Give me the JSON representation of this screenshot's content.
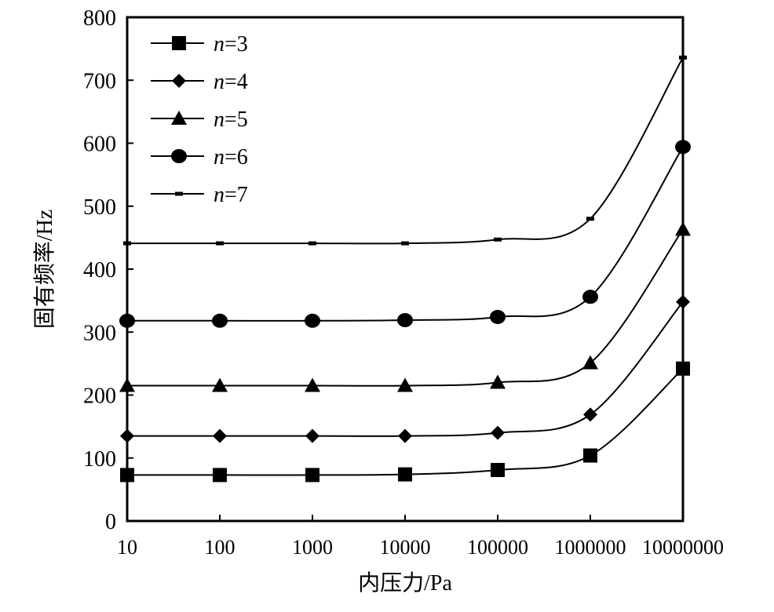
{
  "chart_data": {
    "type": "line",
    "xlabel": "内压力/Pa",
    "ylabel": "固有频率/Hz",
    "x_scale": "log",
    "x": [
      10,
      100,
      1000,
      10000,
      100000,
      1000000,
      10000000
    ],
    "x_tick_labels": [
      "10",
      "100",
      "1000",
      "10000",
      "100000",
      "1000000",
      "10000000"
    ],
    "ylim": [
      0,
      800
    ],
    "y_ticks": [
      0,
      100,
      200,
      300,
      400,
      500,
      600,
      700,
      800
    ],
    "grid": false,
    "legend_position": "top-left",
    "series": [
      {
        "name": "n=3",
        "var": "n",
        "eq": "=3",
        "marker": "square",
        "values": [
          73,
          73,
          73,
          74,
          81,
          104,
          242
        ]
      },
      {
        "name": "n=4",
        "var": "n",
        "eq": "=4",
        "marker": "diamond",
        "values": [
          135,
          135,
          135,
          135,
          140,
          169,
          348
        ]
      },
      {
        "name": "n=5",
        "var": "n",
        "eq": "=5",
        "marker": "triangle",
        "values": [
          215,
          215,
          215,
          215,
          220,
          251,
          463
        ]
      },
      {
        "name": "n=6",
        "var": "n",
        "eq": "=6",
        "marker": "circle",
        "values": [
          318,
          318,
          318,
          319,
          324,
          356,
          594
        ]
      },
      {
        "name": "n=7",
        "var": "n",
        "eq": "=7",
        "marker": "dash",
        "values": [
          441,
          441,
          441,
          441,
          447,
          480,
          736
        ]
      }
    ]
  }
}
